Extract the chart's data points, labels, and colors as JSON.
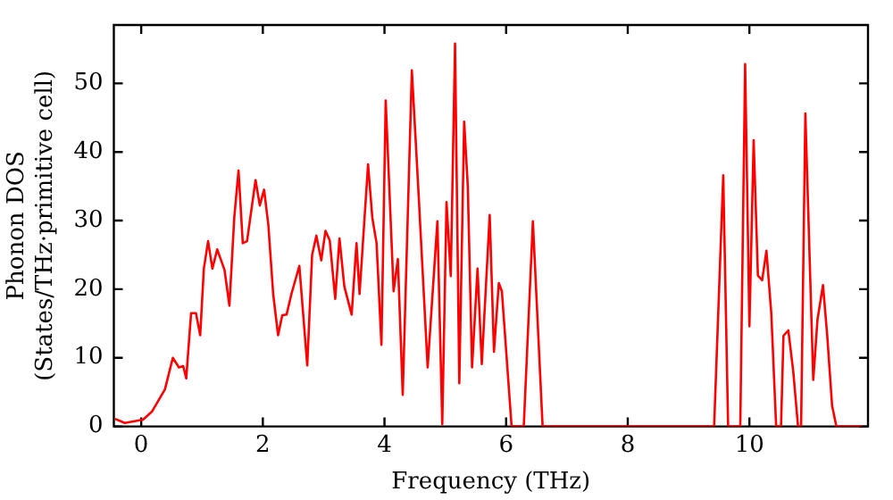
{
  "chart_data": {
    "type": "line",
    "xlabel": "Frequency (THz)",
    "ylabel": "Phonon DOS\n(States/THz·primitive cell)",
    "xlim": [
      -0.45,
      11.95
    ],
    "ylim": [
      0,
      58.5
    ],
    "xticks": [
      0,
      2,
      4,
      6,
      8,
      10
    ],
    "yticks": [
      0,
      10,
      20,
      30,
      40,
      50
    ],
    "grid": false,
    "legend": false,
    "marker": "none",
    "line_style": "solid",
    "series": [
      {
        "color": "#ff0000",
        "x": [
          -0.43,
          -0.27,
          0.03,
          0.18,
          0.39,
          0.52,
          0.62,
          0.69,
          0.74,
          0.82,
          0.9,
          0.97,
          1.03,
          1.1,
          1.17,
          1.25,
          1.37,
          1.45,
          1.53,
          1.6,
          1.67,
          1.74,
          1.88,
          1.95,
          2.02,
          2.09,
          2.17,
          2.25,
          2.32,
          2.39,
          2.47,
          2.6,
          2.73,
          2.81,
          2.88,
          2.96,
          3.03,
          3.1,
          3.19,
          3.26,
          3.34,
          3.46,
          3.54,
          3.59,
          3.73,
          3.8,
          3.87,
          3.95,
          4.02,
          4.15,
          4.22,
          4.3,
          4.45,
          4.56,
          4.71,
          4.87,
          4.95,
          5.02,
          5.09,
          5.16,
          5.23,
          5.31,
          5.37,
          5.44,
          5.53,
          5.6,
          5.73,
          5.8,
          5.88,
          5.93,
          6.09,
          6.29,
          6.44,
          6.6,
          9.42,
          9.57,
          9.65,
          9.85,
          9.93,
          10.0,
          10.07,
          10.14,
          10.21,
          10.28,
          10.36,
          10.44,
          10.52,
          10.56,
          10.64,
          10.72,
          10.8,
          10.85,
          10.92,
          11.05,
          11.12,
          11.21,
          11.28,
          11.36,
          11.43,
          11.85
        ],
        "values": [
          1.1,
          0.5,
          1,
          2.2,
          5.4,
          10,
          8.6,
          8.8,
          7,
          16.5,
          16.5,
          13.3,
          23,
          27,
          23,
          25.8,
          22.8,
          17.6,
          30.4,
          37.3,
          26.7,
          27,
          35.9,
          32.2,
          34.5,
          29.4,
          19.3,
          13.3,
          16.2,
          16.3,
          19.3,
          23.4,
          8.9,
          25,
          27.8,
          24.2,
          28.5,
          27.1,
          18.6,
          27.4,
          20.4,
          16.3,
          26.7,
          19.3,
          38.2,
          30.4,
          26.7,
          11.9,
          47.5,
          19.7,
          24.4,
          4.6,
          51.9,
          34,
          8.6,
          29.9,
          0.3,
          32.7,
          21.9,
          55.8,
          6.3,
          44.4,
          35,
          8.6,
          23,
          9.1,
          30.8,
          10.9,
          20.9,
          19.7,
          0,
          0,
          29.9,
          0,
          0,
          36.6,
          0,
          0,
          52.8,
          14.6,
          41.7,
          22,
          21.3,
          25.6,
          16.5,
          0,
          0,
          13.2,
          14,
          8.1,
          0,
          0,
          45.6,
          6.8,
          15.6,
          20.6,
          13.2,
          3,
          0,
          0
        ]
      }
    ]
  }
}
